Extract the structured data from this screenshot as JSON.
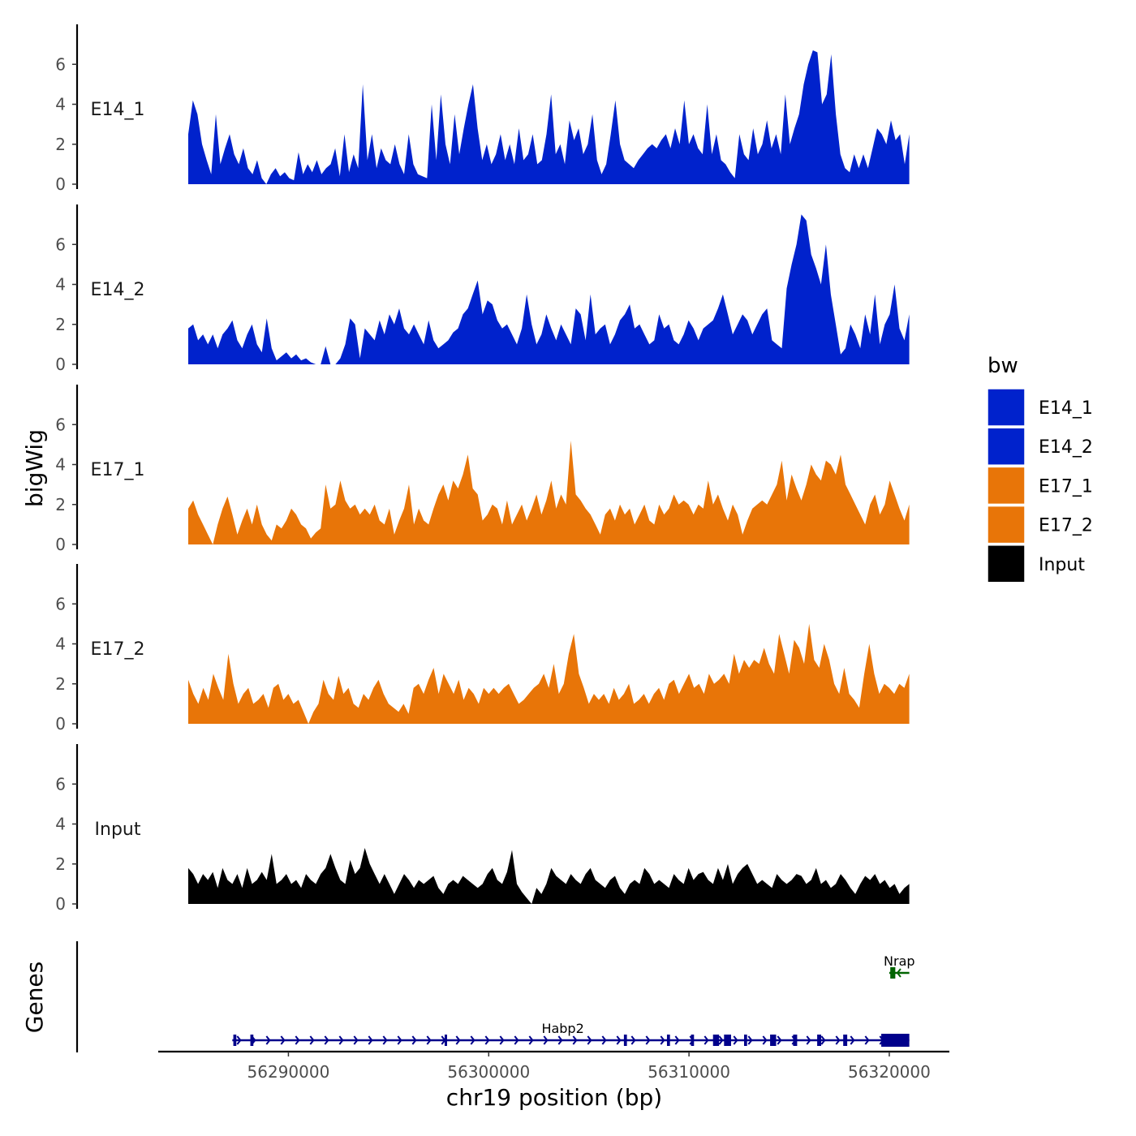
{
  "chart_data": {
    "type": "area",
    "chromosome": "chr19",
    "xlabel": "chr19 position (bp)",
    "ylabel": "bigWig",
    "gene_axis_label": "Genes",
    "xlim": [
      56283500,
      56323000
    ],
    "data_range": [
      56285000,
      56321000
    ],
    "x_ticks": [
      56290000,
      56300000,
      56310000,
      56320000
    ],
    "x_tick_labels": [
      "56290000",
      "56300000",
      "56310000",
      "56320000"
    ],
    "ylim": [
      0,
      8
    ],
    "y_ticks": [
      0,
      2,
      4,
      6
    ],
    "y_tick_labels": [
      "0",
      "2",
      "4",
      "6"
    ],
    "legend": {
      "title": "bw",
      "entries": [
        {
          "label": "E14_1",
          "color": "#0022CC"
        },
        {
          "label": "E14_2",
          "color": "#0022CC"
        },
        {
          "label": "E17_1",
          "color": "#E87508"
        },
        {
          "label": "E17_2",
          "color": "#E87508"
        },
        {
          "label": "Input",
          "color": "#000000"
        }
      ]
    },
    "series": [
      {
        "name": "E14_1",
        "color": "#0022CC",
        "values": [
          2.5,
          4.2,
          3.5,
          2.0,
          1.2,
          0.5,
          3.5,
          1.0,
          1.8,
          2.5,
          1.5,
          1.0,
          1.8,
          0.8,
          0.5,
          1.2,
          0.3,
          0.0,
          0.5,
          0.8,
          0.4,
          0.6,
          0.3,
          0.2,
          1.6,
          0.5,
          1.0,
          0.6,
          1.2,
          0.5,
          0.8,
          1.0,
          1.8,
          0.4,
          2.5,
          0.6,
          1.5,
          0.8,
          5.0,
          1.2,
          2.5,
          0.8,
          1.8,
          1.2,
          1.0,
          2.0,
          1.0,
          0.5,
          2.5,
          1.0,
          0.5,
          0.4,
          0.3,
          4.0,
          1.2,
          4.5,
          2.0,
          1.0,
          3.5,
          1.5,
          2.8,
          4.0,
          5.0,
          2.8,
          1.2,
          2.0,
          1.0,
          1.5,
          2.5,
          1.2,
          2.0,
          1.0,
          2.8,
          1.2,
          1.5,
          2.5,
          1.0,
          1.2,
          2.5,
          4.5,
          1.5,
          2.0,
          1.0,
          3.2,
          2.2,
          2.8,
          1.5,
          2.0,
          3.5,
          1.2,
          0.5,
          1.0,
          2.5,
          4.2,
          2.0,
          1.2,
          1.0,
          0.8,
          1.2,
          1.5,
          1.8,
          2.0,
          1.8,
          2.2,
          2.5,
          1.8,
          2.8,
          2.0,
          4.2,
          2.0,
          2.5,
          1.8,
          1.5,
          4.0,
          1.5,
          2.5,
          1.2,
          1.0,
          0.6,
          0.3,
          2.5,
          1.5,
          1.2,
          2.8,
          1.5,
          2.0,
          3.2,
          1.8,
          2.5,
          1.5,
          4.5,
          2.0,
          2.8,
          3.5,
          5.0,
          6.0,
          6.7,
          6.6,
          4.0,
          4.5,
          6.5,
          3.5,
          1.5,
          0.8,
          0.6,
          1.5,
          0.8,
          1.5,
          0.8,
          1.8,
          2.8,
          2.5,
          2.0,
          3.2,
          2.2,
          2.5,
          1.0,
          2.5
        ]
      },
      {
        "name": "E14_2",
        "color": "#0022CC",
        "values": [
          1.8,
          2.0,
          1.2,
          1.5,
          1.0,
          1.5,
          0.8,
          1.5,
          1.8,
          2.2,
          1.2,
          0.8,
          1.5,
          2.0,
          1.0,
          0.6,
          2.3,
          0.8,
          0.2,
          0.4,
          0.6,
          0.3,
          0.5,
          0.2,
          0.3,
          0.1,
          0.0,
          0.0,
          0.9,
          0.0,
          0.0,
          0.3,
          1.0,
          2.3,
          2.0,
          0.3,
          1.8,
          1.5,
          1.2,
          2.2,
          1.5,
          2.5,
          2.0,
          2.8,
          1.8,
          1.5,
          2.0,
          1.5,
          1.0,
          2.2,
          1.2,
          0.8,
          1.0,
          1.2,
          1.6,
          1.8,
          2.5,
          2.8,
          3.5,
          4.2,
          2.5,
          3.2,
          3.0,
          2.2,
          1.8,
          2.0,
          1.5,
          1.0,
          1.8,
          3.5,
          2.0,
          1.0,
          1.5,
          2.5,
          1.8,
          1.2,
          2.0,
          1.5,
          1.0,
          2.8,
          2.5,
          1.2,
          3.5,
          1.5,
          1.8,
          2.0,
          1.0,
          1.5,
          2.2,
          2.5,
          3.0,
          1.8,
          2.0,
          1.5,
          1.0,
          1.2,
          2.5,
          1.8,
          2.0,
          1.2,
          1.0,
          1.5,
          2.2,
          1.8,
          1.2,
          1.8,
          2.0,
          2.2,
          2.8,
          3.5,
          2.5,
          1.5,
          2.0,
          2.5,
          2.2,
          1.5,
          2.0,
          2.5,
          2.8,
          1.2,
          1.0,
          0.8,
          3.8,
          5.0,
          6.0,
          7.5,
          7.2,
          5.5,
          4.8,
          4.0,
          6.0,
          3.5,
          2.0,
          0.5,
          0.8,
          2.0,
          1.5,
          0.8,
          2.5,
          1.5,
          3.5,
          1.0,
          2.0,
          2.5,
          4.0,
          1.8,
          1.2,
          2.5
        ]
      },
      {
        "name": "E17_1",
        "color": "#E87508",
        "values": [
          1.8,
          2.2,
          1.5,
          1.0,
          0.5,
          0.0,
          1.0,
          1.8,
          2.4,
          1.5,
          0.5,
          1.2,
          1.8,
          1.0,
          2.0,
          1.0,
          0.5,
          0.2,
          1.0,
          0.8,
          1.2,
          1.8,
          1.5,
          1.0,
          0.8,
          0.3,
          0.6,
          0.8,
          3.0,
          1.8,
          2.0,
          3.2,
          2.2,
          1.8,
          2.0,
          1.5,
          1.8,
          1.5,
          2.0,
          1.2,
          1.0,
          1.8,
          0.5,
          1.2,
          1.8,
          3.0,
          1.0,
          1.8,
          1.2,
          1.0,
          1.8,
          2.5,
          3.0,
          2.2,
          3.2,
          2.8,
          3.5,
          4.5,
          2.8,
          2.5,
          1.2,
          1.5,
          2.0,
          1.8,
          1.0,
          2.2,
          1.0,
          1.5,
          2.0,
          1.2,
          1.8,
          2.5,
          1.5,
          2.2,
          3.2,
          1.8,
          2.5,
          2.0,
          5.2,
          2.5,
          2.2,
          1.8,
          1.5,
          1.0,
          0.5,
          1.5,
          1.8,
          1.2,
          2.0,
          1.5,
          1.8,
          1.0,
          1.5,
          2.0,
          1.2,
          1.0,
          2.0,
          1.5,
          1.8,
          2.5,
          2.0,
          2.2,
          2.0,
          1.5,
          2.0,
          1.8,
          3.2,
          2.0,
          2.5,
          1.8,
          1.2,
          2.0,
          1.5,
          0.5,
          1.2,
          1.8,
          2.0,
          2.2,
          2.0,
          2.5,
          3.0,
          4.2,
          2.2,
          3.5,
          2.8,
          2.2,
          3.0,
          4.0,
          3.5,
          3.2,
          4.2,
          4.0,
          3.5,
          4.5,
          3.0,
          2.5,
          2.0,
          1.5,
          1.0,
          2.0,
          2.5,
          1.5,
          2.0,
          3.2,
          2.5,
          1.8,
          1.2,
          2.0
        ]
      },
      {
        "name": "E17_2",
        "color": "#E87508",
        "values": [
          2.2,
          1.5,
          1.0,
          1.8,
          1.2,
          2.5,
          1.8,
          1.2,
          3.5,
          2.0,
          1.0,
          1.5,
          1.8,
          1.0,
          1.2,
          1.5,
          0.8,
          1.8,
          2.0,
          1.2,
          1.5,
          1.0,
          1.2,
          0.6,
          0.0,
          0.6,
          1.0,
          2.2,
          1.5,
          1.2,
          2.4,
          1.5,
          1.8,
          1.0,
          0.8,
          1.5,
          1.2,
          1.8,
          2.2,
          1.5,
          1.0,
          0.8,
          0.6,
          1.0,
          0.5,
          1.8,
          2.0,
          1.5,
          2.2,
          2.8,
          1.5,
          2.5,
          2.0,
          1.5,
          2.2,
          1.2,
          1.8,
          1.5,
          1.0,
          1.8,
          1.5,
          1.8,
          1.5,
          1.8,
          2.0,
          1.5,
          1.0,
          1.2,
          1.5,
          1.8,
          2.0,
          2.5,
          1.8,
          3.0,
          1.5,
          2.0,
          3.5,
          4.5,
          2.5,
          1.8,
          1.0,
          1.5,
          1.2,
          1.5,
          1.0,
          1.8,
          1.2,
          1.5,
          2.0,
          1.0,
          1.2,
          1.5,
          1.0,
          1.5,
          1.8,
          1.2,
          2.0,
          2.2,
          1.5,
          2.0,
          2.5,
          1.8,
          2.0,
          1.5,
          2.5,
          2.0,
          2.2,
          2.5,
          2.0,
          3.5,
          2.5,
          3.2,
          2.8,
          3.2,
          3.0,
          3.8,
          3.0,
          2.5,
          4.5,
          3.5,
          2.5,
          4.2,
          3.8,
          3.0,
          5.0,
          3.2,
          2.8,
          4.0,
          3.2,
          2.0,
          1.5,
          2.8,
          1.5,
          1.2,
          0.8,
          2.5,
          4.0,
          2.5,
          1.5,
          2.0,
          1.8,
          1.5,
          2.0,
          1.8,
          2.5
        ]
      },
      {
        "name": "Input",
        "color": "#000000",
        "values": [
          1.8,
          1.5,
          1.0,
          1.5,
          1.2,
          1.6,
          0.8,
          1.8,
          1.2,
          1.0,
          1.5,
          0.8,
          1.8,
          1.0,
          1.2,
          1.6,
          1.2,
          2.5,
          1.0,
          1.2,
          1.5,
          1.0,
          1.2,
          0.8,
          1.5,
          1.2,
          1.0,
          1.5,
          1.8,
          2.5,
          1.8,
          1.2,
          1.0,
          2.2,
          1.5,
          1.8,
          2.8,
          2.0,
          1.5,
          1.0,
          1.5,
          1.0,
          0.5,
          1.0,
          1.5,
          1.2,
          0.8,
          1.2,
          1.0,
          1.2,
          1.4,
          0.8,
          0.5,
          1.0,
          1.2,
          1.0,
          1.4,
          1.2,
          1.0,
          0.8,
          1.0,
          1.5,
          1.8,
          1.2,
          1.0,
          1.6,
          2.7,
          1.0,
          0.6,
          0.3,
          0.0,
          0.8,
          0.5,
          1.0,
          1.8,
          1.4,
          1.2,
          1.0,
          1.5,
          1.2,
          1.0,
          1.5,
          1.8,
          1.2,
          1.0,
          0.8,
          1.2,
          1.4,
          0.8,
          0.5,
          1.0,
          1.2,
          1.0,
          1.8,
          1.5,
          1.0,
          1.2,
          1.0,
          0.8,
          1.5,
          1.2,
          1.0,
          1.8,
          1.2,
          1.5,
          1.6,
          1.2,
          1.0,
          1.8,
          1.2,
          2.0,
          1.0,
          1.5,
          1.8,
          2.0,
          1.5,
          1.0,
          1.2,
          1.0,
          0.8,
          1.5,
          1.2,
          1.0,
          1.2,
          1.5,
          1.4,
          1.0,
          1.2,
          1.8,
          1.0,
          1.2,
          0.8,
          1.0,
          1.5,
          1.2,
          0.8,
          0.5,
          1.0,
          1.4,
          1.2,
          1.5,
          1.0,
          1.2,
          0.8,
          1.0,
          0.5,
          0.8,
          1.0
        ]
      }
    ],
    "genes": [
      {
        "name": "Habp2",
        "strand": "+",
        "color": "#00008B",
        "start": 56287200,
        "end": 56321000,
        "exons": [
          [
            56287250,
            56287400
          ],
          [
            56288100,
            56288250
          ],
          [
            56297800,
            56297900
          ],
          [
            56306750,
            56306900
          ],
          [
            56308900,
            56309050
          ],
          [
            56310100,
            56310250
          ],
          [
            56311200,
            56311500
          ],
          [
            56311750,
            56312100
          ],
          [
            56312750,
            56312900
          ],
          [
            56314050,
            56314350
          ],
          [
            56315200,
            56315400
          ],
          [
            56316400,
            56316600
          ],
          [
            56317700,
            56317900
          ],
          [
            56319600,
            56321000
          ]
        ]
      },
      {
        "name": "Nrap",
        "strand": "-",
        "color": "#006400",
        "start": 56320000,
        "end": 56321000,
        "exons": [
          [
            56320050,
            56320300
          ]
        ]
      }
    ]
  }
}
